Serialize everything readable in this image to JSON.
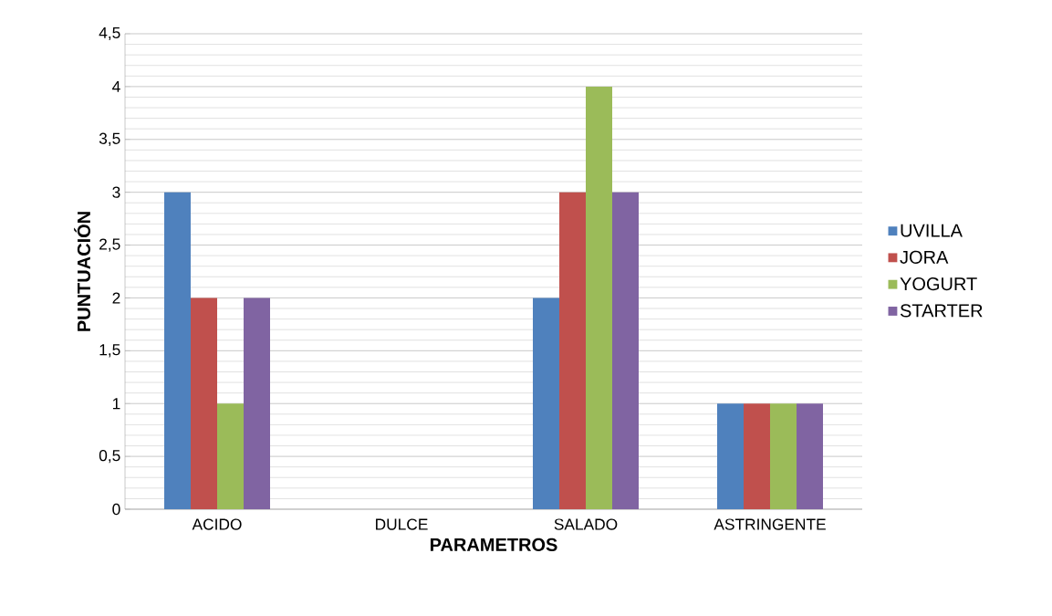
{
  "chart_data": {
    "type": "bar",
    "xlabel": "PARAMETROS",
    "ylabel": "PUNTUACIÓN",
    "categories": [
      "ACIDO",
      "DULCE",
      "SALADO",
      "ASTRINGENTE"
    ],
    "series": [
      {
        "name": "UVILLA",
        "color": "#4f81bd",
        "values": [
          3,
          0,
          2,
          1
        ]
      },
      {
        "name": "JORA",
        "color": "#c0504d",
        "values": [
          2,
          0,
          3,
          1
        ]
      },
      {
        "name": "YOGURT",
        "color": "#9bbb59",
        "values": [
          1,
          0,
          4,
          1
        ]
      },
      {
        "name": "STARTER",
        "color": "#8064a2",
        "values": [
          2,
          0,
          3,
          1
        ]
      }
    ],
    "ylim": [
      0,
      4.5
    ],
    "yticks": [
      0,
      {
        "value": 0.5,
        "label": "0,5"
      },
      1,
      {
        "value": 1.5,
        "label": "1,5"
      },
      2,
      {
        "value": 2.5,
        "label": "2,5"
      },
      3,
      {
        "value": 3.5,
        "label": "3,5"
      },
      4,
      {
        "value": 4.5,
        "label": "4,5"
      }
    ],
    "grid": "y",
    "legend": "right"
  }
}
